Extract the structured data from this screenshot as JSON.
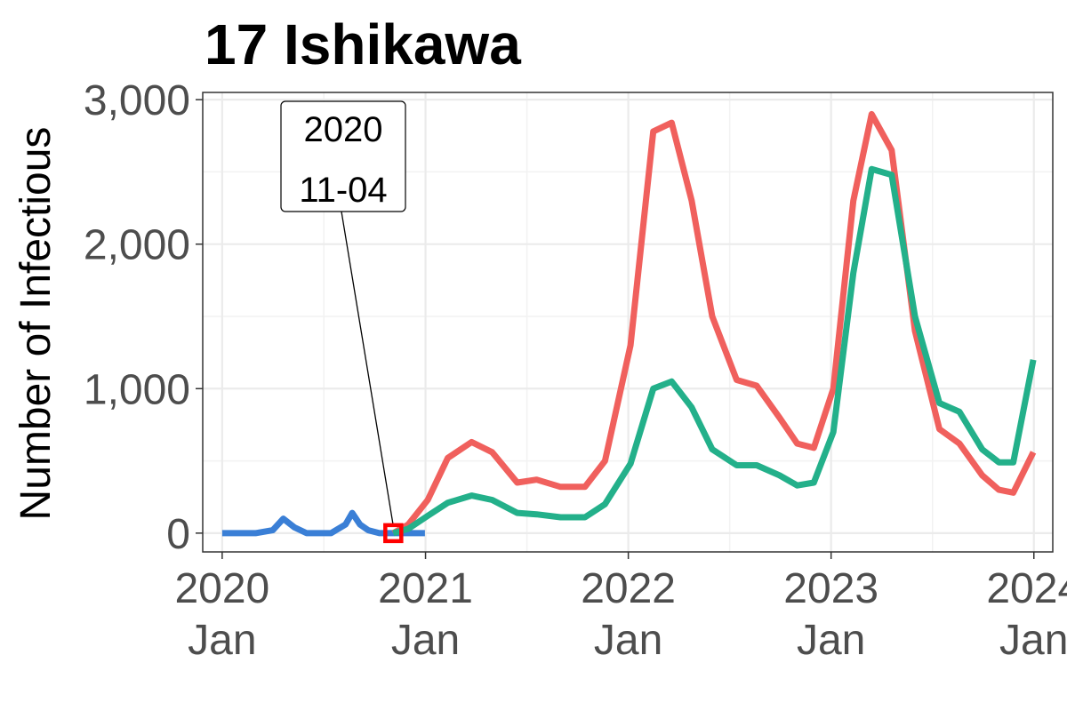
{
  "chart_data": {
    "type": "line",
    "title": "17 Ishikawa",
    "xlabel": "",
    "ylabel": "Number of Infectious",
    "xlim": [
      "2019-11-27",
      "2024-02-04"
    ],
    "ylim": [
      -130,
      3050
    ],
    "grid": true,
    "legend": "none",
    "y_ticks": [
      {
        "value": 0,
        "label": "0"
      },
      {
        "value": 1000,
        "label": "1,000"
      },
      {
        "value": 2000,
        "label": "2,000"
      },
      {
        "value": 3000,
        "label": "3,000"
      }
    ],
    "x_ticks": [
      {
        "date": "2020-01-01",
        "year": "2020",
        "month": "Jan"
      },
      {
        "date": "2021-01-01",
        "year": "2021",
        "month": "Jan"
      },
      {
        "date": "2022-01-01",
        "year": "2022",
        "month": "Jan"
      },
      {
        "date": "2023-01-01",
        "year": "2023",
        "month": "Jan"
      },
      {
        "date": "2024-01-01",
        "year": "2024",
        "month": "Jan"
      }
    ],
    "series": [
      {
        "color": "#3a7fd6",
        "points": [
          [
            "2020-01-01",
            0
          ],
          [
            "2020-03-01",
            0
          ],
          [
            "2020-04-01",
            20
          ],
          [
            "2020-04-20",
            100
          ],
          [
            "2020-05-10",
            40
          ],
          [
            "2020-06-01",
            0
          ],
          [
            "2020-07-15",
            0
          ],
          [
            "2020-08-10",
            60
          ],
          [
            "2020-08-22",
            140
          ],
          [
            "2020-09-05",
            60
          ],
          [
            "2020-09-20",
            20
          ],
          [
            "2020-10-10",
            0
          ],
          [
            "2020-11-04",
            0
          ],
          [
            "2020-12-31",
            0
          ]
        ]
      },
      {
        "color": "#f0605d",
        "points": [
          [
            "2020-11-04",
            0
          ],
          [
            "2020-12-01",
            60
          ],
          [
            "2021-01-05",
            230
          ],
          [
            "2021-02-10",
            520
          ],
          [
            "2021-03-25",
            630
          ],
          [
            "2021-05-01",
            560
          ],
          [
            "2021-06-15",
            350
          ],
          [
            "2021-07-20",
            370
          ],
          [
            "2021-09-01",
            320
          ],
          [
            "2021-10-15",
            320
          ],
          [
            "2021-11-20",
            500
          ],
          [
            "2022-01-05",
            1300
          ],
          [
            "2022-02-15",
            2780
          ],
          [
            "2022-03-20",
            2840
          ],
          [
            "2022-04-25",
            2300
          ],
          [
            "2022-06-01",
            1500
          ],
          [
            "2022-07-15",
            1060
          ],
          [
            "2022-08-20",
            1020
          ],
          [
            "2022-09-30",
            800
          ],
          [
            "2022-11-01",
            620
          ],
          [
            "2022-12-01",
            590
          ],
          [
            "2023-01-05",
            1000
          ],
          [
            "2023-02-10",
            2300
          ],
          [
            "2023-03-15",
            2900
          ],
          [
            "2023-04-20",
            2650
          ],
          [
            "2023-06-01",
            1400
          ],
          [
            "2023-07-15",
            720
          ],
          [
            "2023-08-20",
            620
          ],
          [
            "2023-09-30",
            400
          ],
          [
            "2023-10-30",
            300
          ],
          [
            "2023-11-25",
            280
          ],
          [
            "2023-12-31",
            560
          ]
        ]
      },
      {
        "color": "#23b08a",
        "points": [
          [
            "2020-11-04",
            0
          ],
          [
            "2020-12-01",
            30
          ],
          [
            "2021-01-05",
            120
          ],
          [
            "2021-02-10",
            210
          ],
          [
            "2021-03-25",
            260
          ],
          [
            "2021-05-01",
            230
          ],
          [
            "2021-06-15",
            140
          ],
          [
            "2021-07-20",
            130
          ],
          [
            "2021-09-01",
            110
          ],
          [
            "2021-10-15",
            110
          ],
          [
            "2021-11-20",
            200
          ],
          [
            "2022-01-05",
            480
          ],
          [
            "2022-02-15",
            1000
          ],
          [
            "2022-03-20",
            1050
          ],
          [
            "2022-04-25",
            870
          ],
          [
            "2022-06-01",
            580
          ],
          [
            "2022-07-15",
            470
          ],
          [
            "2022-08-20",
            470
          ],
          [
            "2022-09-30",
            400
          ],
          [
            "2022-11-01",
            330
          ],
          [
            "2022-12-01",
            350
          ],
          [
            "2023-01-05",
            700
          ],
          [
            "2023-02-10",
            1800
          ],
          [
            "2023-03-15",
            2520
          ],
          [
            "2023-04-20",
            2480
          ],
          [
            "2023-06-01",
            1500
          ],
          [
            "2023-07-15",
            900
          ],
          [
            "2023-08-20",
            840
          ],
          [
            "2023-09-30",
            580
          ],
          [
            "2023-10-30",
            490
          ],
          [
            "2023-11-25",
            490
          ],
          [
            "2023-12-31",
            1200
          ]
        ]
      }
    ],
    "annotation": {
      "date": "2020-11-04",
      "value": 0,
      "lines": [
        "2020",
        "11-04"
      ],
      "marker_color": "#ff0000"
    }
  }
}
